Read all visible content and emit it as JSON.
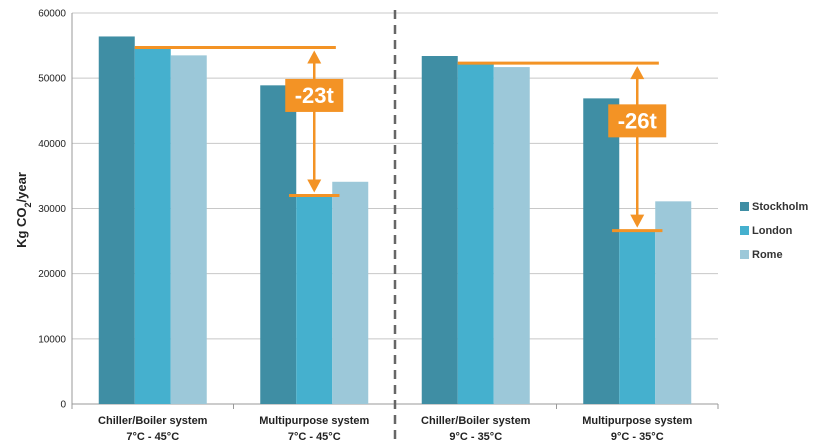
{
  "chart_data": {
    "type": "bar",
    "ylabel_main": "Kg CO",
    "ylabel_sub": "2",
    "ylabel_tail": "/year",
    "ylim": [
      0,
      60000
    ],
    "yticks": [
      "0",
      "10000",
      "20000",
      "30000",
      "40000",
      "50000",
      "60000"
    ],
    "yticks_values": [
      0,
      10000,
      20000,
      30000,
      40000,
      50000,
      60000
    ],
    "grid": true,
    "legend_position": "right",
    "categories": [
      {
        "line1": "Chiller/Boiler system",
        "line2": "7°C - 45°C"
      },
      {
        "line1": "Multipurpose system",
        "line2": "7°C - 45°C"
      },
      {
        "line1": "Chiller/Boiler system",
        "line2": "9°C - 35°C"
      },
      {
        "line1": "Multipurpose system",
        "line2": "9°C - 35°C"
      }
    ],
    "series": [
      {
        "name": "Stockholm",
        "color": "#3f8ea4",
        "values": [
          56400,
          48900,
          53400,
          46900
        ]
      },
      {
        "name": "London",
        "color": "#45b0ce",
        "values": [
          54600,
          32000,
          52200,
          26600
        ]
      },
      {
        "name": "Rome",
        "color": "#9cc8d9",
        "values": [
          53500,
          34100,
          51700,
          31100
        ]
      }
    ],
    "annotations": [
      {
        "label": "-23t",
        "from": 54700,
        "to": 32000,
        "group": 1
      },
      {
        "label": "-26t",
        "from": 52300,
        "to": 26600,
        "group": 3
      }
    ],
    "divider_after_group": 1,
    "annotation_color": "#f39325",
    "divider_color": "#666666"
  }
}
